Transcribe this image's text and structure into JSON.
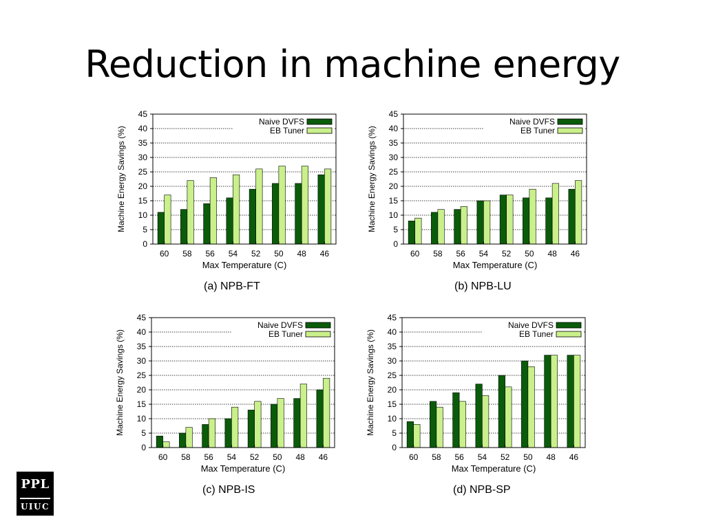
{
  "slide": {
    "title": "Reduction in machine energy"
  },
  "logo": {
    "top": "PPL",
    "bottom": "UIUC"
  },
  "colors": {
    "naive": "#0a5c0a",
    "eb": "#c9f08a",
    "grid": "#000000"
  },
  "chart_data": [
    {
      "type": "bar",
      "caption": "(a) NPB-FT",
      "xlabel": "Max Temperature (C)",
      "ylabel": "Machine Energy Savings (%)",
      "categories": [
        "60",
        "58",
        "56",
        "54",
        "52",
        "50",
        "48",
        "46"
      ],
      "ylim": [
        0,
        45
      ],
      "yticks": [
        "0",
        "5",
        "10",
        "15",
        "20",
        "25",
        "30",
        "35",
        "40",
        "45"
      ],
      "legend_position": "top-right",
      "grid": true,
      "series": [
        {
          "name": "Naive DVFS",
          "values": [
            11,
            12,
            14,
            16,
            19,
            21,
            21,
            24
          ]
        },
        {
          "name": "EB Tuner",
          "values": [
            17,
            22,
            23,
            24,
            26,
            27,
            27,
            26
          ]
        }
      ]
    },
    {
      "type": "bar",
      "caption": "(b) NPB-LU",
      "xlabel": "Max Temperature (C)",
      "ylabel": "Machine Energy Savings (%)",
      "categories": [
        "60",
        "58",
        "56",
        "54",
        "52",
        "50",
        "48",
        "46"
      ],
      "ylim": [
        0,
        45
      ],
      "yticks": [
        "0",
        "5",
        "10",
        "15",
        "20",
        "25",
        "30",
        "35",
        "40",
        "45"
      ],
      "legend_position": "top-right",
      "grid": true,
      "series": [
        {
          "name": "Naive DVFS",
          "values": [
            8,
            11,
            12,
            15,
            17,
            16,
            16,
            19
          ]
        },
        {
          "name": "EB Tuner",
          "values": [
            9,
            12,
            13,
            15,
            17,
            19,
            21,
            22
          ]
        }
      ]
    },
    {
      "type": "bar",
      "caption": "(c) NPB-IS",
      "xlabel": "Max Temperature (C)",
      "ylabel": "Machine Energy Savings (%)",
      "categories": [
        "60",
        "58",
        "56",
        "54",
        "52",
        "50",
        "48",
        "46"
      ],
      "ylim": [
        0,
        45
      ],
      "yticks": [
        "0",
        "5",
        "10",
        "15",
        "20",
        "25",
        "30",
        "35",
        "40",
        "45"
      ],
      "legend_position": "top-right",
      "grid": true,
      "series": [
        {
          "name": "Naive DVFS",
          "values": [
            4,
            5,
            8,
            10,
            13,
            15,
            17,
            20
          ]
        },
        {
          "name": "EB Tuner",
          "values": [
            2,
            7,
            10,
            14,
            16,
            17,
            22,
            24
          ]
        }
      ]
    },
    {
      "type": "bar",
      "caption": "(d) NPB-SP",
      "xlabel": "Max Temperature (C)",
      "ylabel": "Machine Energy Savings (%)",
      "categories": [
        "60",
        "58",
        "56",
        "54",
        "52",
        "50",
        "48",
        "46"
      ],
      "ylim": [
        0,
        45
      ],
      "yticks": [
        "0",
        "5",
        "10",
        "15",
        "20",
        "25",
        "30",
        "35",
        "40",
        "45"
      ],
      "legend_position": "top-right",
      "grid": true,
      "series": [
        {
          "name": "Naive DVFS",
          "values": [
            9,
            16,
            19,
            22,
            25,
            30,
            32,
            32
          ]
        },
        {
          "name": "EB Tuner",
          "values": [
            8,
            14,
            16,
            18,
            21,
            28,
            32,
            32
          ]
        }
      ]
    }
  ]
}
